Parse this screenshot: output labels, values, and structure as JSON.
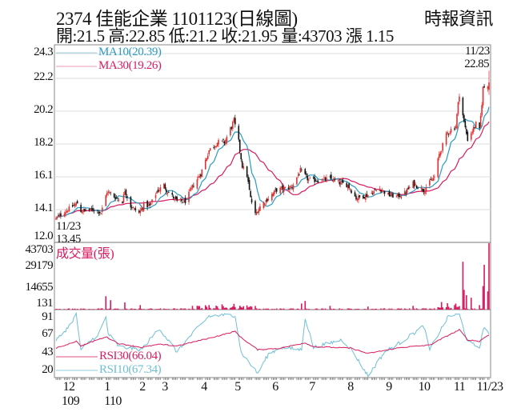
{
  "header": {
    "title": "2374  佳能企業 1101123(日線圖)",
    "quote": "開:21.5 高:22.85 低:21.2 收:21.95 量:43703 漲 1.15",
    "source": "時報資訊"
  },
  "chart_data": {
    "type": "candlestick",
    "colors": {
      "up": "#e0312f",
      "down": "#111111",
      "ma10": "#2b9ac0",
      "ma30": "#d81b60",
      "volume": "#d81b60",
      "rsi10": "#6fbfd4",
      "rsi30": "#d81b60",
      "grid": "#dcdcdc"
    },
    "xaxis": {
      "month_labels": [
        "12",
        "1",
        "2",
        "3",
        "4",
        "5",
        "6",
        "7",
        "8",
        "9",
        "10",
        "11",
        "11/23"
      ],
      "year_labels": [
        "109",
        "110"
      ],
      "range": [
        "2020-11-23",
        "2021-11-23"
      ]
    },
    "price_panel": {
      "yticks": [
        "24.3",
        "22.2",
        "20.2",
        "18.2",
        "16.1",
        "14.1",
        "12.0"
      ],
      "ylim": [
        12.0,
        24.3
      ],
      "grid": true,
      "legend": [
        {
          "key": "ma10",
          "label": "MA10(20.39)"
        },
        {
          "key": "ma30",
          "label": "MA30(19.26)"
        }
      ],
      "high_annotation": {
        "date": "11/23",
        "value": "22.85"
      },
      "low_annotation": {
        "date": "11/23",
        "value": "13.45"
      },
      "last_bar": {
        "date": "2021-11-23",
        "open": 21.5,
        "high": 22.85,
        "low": 21.2,
        "close": 21.95
      },
      "close_points": [
        [
          "2020-11-23",
          13.5
        ],
        [
          "2020-11-24",
          13.6
        ],
        [
          "2020-12-03",
          14.1
        ],
        [
          "2020-12-11",
          14.5
        ],
        [
          "2020-12-14",
          14.0
        ],
        [
          "2020-12-25",
          14.1
        ],
        [
          "2020-12-31",
          13.9
        ],
        [
          "2021-01-05",
          15.2
        ],
        [
          "2021-01-11",
          14.9
        ],
        [
          "2021-01-18",
          14.6
        ],
        [
          "2021-01-20",
          15.3
        ],
        [
          "2021-01-25",
          14.3
        ],
        [
          "2021-02-01",
          13.9
        ],
        [
          "2021-02-05",
          14.4
        ],
        [
          "2021-02-10",
          14.3
        ],
        [
          "2021-02-16",
          15.2
        ],
        [
          "2021-02-22",
          15.6
        ],
        [
          "2021-02-24",
          15.3
        ],
        [
          "2021-03-05",
          14.6
        ],
        [
          "2021-03-12",
          14.6
        ],
        [
          "2021-03-18",
          15.5
        ],
        [
          "2021-03-25",
          16.3
        ],
        [
          "2021-04-01",
          17.8
        ],
        [
          "2021-04-08",
          18.3
        ],
        [
          "2021-04-14",
          18.3
        ],
        [
          "2021-04-22",
          19.6
        ],
        [
          "2021-04-26",
          18.3
        ],
        [
          "2021-04-29",
          16.8
        ],
        [
          "2021-05-03",
          16.2
        ],
        [
          "2021-05-06",
          14.8
        ],
        [
          "2021-05-10",
          13.8
        ],
        [
          "2021-05-14",
          14.3
        ],
        [
          "2021-05-21",
          14.8
        ],
        [
          "2021-05-28",
          15.3
        ],
        [
          "2021-06-04",
          15.4
        ],
        [
          "2021-06-10",
          15.5
        ],
        [
          "2021-06-17",
          16.5
        ],
        [
          "2021-06-24",
          15.9
        ],
        [
          "2021-07-05",
          15.9
        ],
        [
          "2021-07-12",
          16.0
        ],
        [
          "2021-07-21",
          15.7
        ],
        [
          "2021-07-27",
          15.6
        ],
        [
          "2021-08-03",
          14.8
        ],
        [
          "2021-08-13",
          15.0
        ],
        [
          "2021-08-23",
          15.4
        ],
        [
          "2021-08-30",
          15.0
        ],
        [
          "2021-09-06",
          14.9
        ],
        [
          "2021-09-13",
          15.1
        ],
        [
          "2021-09-20",
          15.7
        ],
        [
          "2021-09-29",
          15.3
        ],
        [
          "2021-10-08",
          16.1
        ],
        [
          "2021-10-12",
          17.5
        ],
        [
          "2021-10-19",
          18.9
        ],
        [
          "2021-10-26",
          19.3
        ],
        [
          "2021-10-29",
          21.3
        ],
        [
          "2021-11-02",
          19.5
        ],
        [
          "2021-11-05",
          18.5
        ],
        [
          "2021-11-08",
          18.9
        ],
        [
          "2021-11-12",
          19.4
        ],
        [
          "2021-11-15",
          19.0
        ],
        [
          "2021-11-18",
          21.6
        ],
        [
          "2021-11-23",
          21.95
        ]
      ]
    },
    "volume_panel": {
      "title": "成交量(張)",
      "yticks": [
        "43703",
        "29179",
        "14655",
        "131"
      ],
      "ylim": [
        0,
        43703
      ],
      "spikes": [
        [
          "2021-01-04",
          8800
        ],
        [
          "2021-01-08",
          6200
        ],
        [
          "2021-01-20",
          4700
        ],
        [
          "2021-02-02",
          3000
        ],
        [
          "2021-03-22",
          2500
        ],
        [
          "2021-04-01",
          3000
        ],
        [
          "2021-04-12",
          3500
        ],
        [
          "2021-04-22",
          3800
        ],
        [
          "2021-05-03",
          2800
        ],
        [
          "2021-06-18",
          4000
        ],
        [
          "2021-06-21",
          5700
        ],
        [
          "2021-07-12",
          2500
        ],
        [
          "2021-08-13",
          2000
        ],
        [
          "2021-09-20",
          2500
        ],
        [
          "2021-10-14",
          5000
        ],
        [
          "2021-10-19",
          4200
        ],
        [
          "2021-10-26",
          4000
        ],
        [
          "2021-11-01",
          31500
        ],
        [
          "2021-11-02",
          13000
        ],
        [
          "2021-11-04",
          9500
        ],
        [
          "2021-11-08",
          7800
        ],
        [
          "2021-11-15",
          3000
        ],
        [
          "2021-11-18",
          15500
        ],
        [
          "2021-11-19",
          29500
        ],
        [
          "2021-11-22",
          12000
        ],
        [
          "2021-11-23",
          43703
        ]
      ]
    },
    "rsi_panel": {
      "yticks": [
        "91",
        "67",
        "43",
        "20"
      ],
      "legend": [
        {
          "key": "rsi30",
          "label": "RSI30(66.04)"
        },
        {
          "key": "rsi10",
          "label": "RSI10(67.34)"
        }
      ],
      "rsi10": [
        [
          "2020-11-23",
          60
        ],
        [
          "2020-11-25",
          62
        ],
        [
          "2020-12-04",
          78
        ],
        [
          "2020-12-10",
          93
        ],
        [
          "2020-12-14",
          47
        ],
        [
          "2020-12-29",
          68
        ],
        [
          "2021-01-04",
          89
        ],
        [
          "2021-01-06",
          68
        ],
        [
          "2021-01-15",
          51
        ],
        [
          "2021-02-03",
          47
        ],
        [
          "2021-02-18",
          75
        ],
        [
          "2021-03-05",
          44
        ],
        [
          "2021-03-18",
          68
        ],
        [
          "2021-04-01",
          91
        ],
        [
          "2021-04-14",
          92
        ],
        [
          "2021-04-23",
          92
        ],
        [
          "2021-04-28",
          44
        ],
        [
          "2021-05-12",
          16
        ],
        [
          "2021-05-21",
          41
        ],
        [
          "2021-05-31",
          50
        ],
        [
          "2021-06-18",
          47
        ],
        [
          "2021-06-21",
          89
        ],
        [
          "2021-06-28",
          50
        ],
        [
          "2021-07-22",
          60
        ],
        [
          "2021-07-30",
          47
        ],
        [
          "2021-08-13",
          13
        ],
        [
          "2021-08-27",
          44
        ],
        [
          "2021-09-10",
          57
        ],
        [
          "2021-09-20",
          68
        ],
        [
          "2021-09-29",
          78
        ],
        [
          "2021-10-04",
          47
        ],
        [
          "2021-10-14",
          75
        ],
        [
          "2021-10-20",
          91
        ],
        [
          "2021-10-29",
          93
        ],
        [
          "2021-11-05",
          57
        ],
        [
          "2021-11-15",
          50
        ],
        [
          "2021-11-19",
          78
        ],
        [
          "2021-11-23",
          67.34
        ]
      ],
      "rsi30": [
        [
          "2020-11-23",
          49
        ],
        [
          "2020-11-25",
          50
        ],
        [
          "2020-12-10",
          58
        ],
        [
          "2020-12-14",
          52
        ],
        [
          "2021-01-04",
          64
        ],
        [
          "2021-01-15",
          55
        ],
        [
          "2021-02-03",
          50
        ],
        [
          "2021-02-18",
          54
        ],
        [
          "2021-03-05",
          52
        ],
        [
          "2021-04-01",
          62
        ],
        [
          "2021-04-23",
          71
        ],
        [
          "2021-04-28",
          63
        ],
        [
          "2021-05-12",
          47
        ],
        [
          "2021-05-31",
          49
        ],
        [
          "2021-06-21",
          56
        ],
        [
          "2021-06-28",
          51
        ],
        [
          "2021-07-30",
          49
        ],
        [
          "2021-08-13",
          42
        ],
        [
          "2021-09-10",
          50
        ],
        [
          "2021-10-04",
          53
        ],
        [
          "2021-10-20",
          66
        ],
        [
          "2021-10-29",
          73
        ],
        [
          "2021-11-05",
          60
        ],
        [
          "2021-11-15",
          58
        ],
        [
          "2021-11-19",
          63
        ],
        [
          "2021-11-23",
          66.04
        ]
      ]
    }
  }
}
